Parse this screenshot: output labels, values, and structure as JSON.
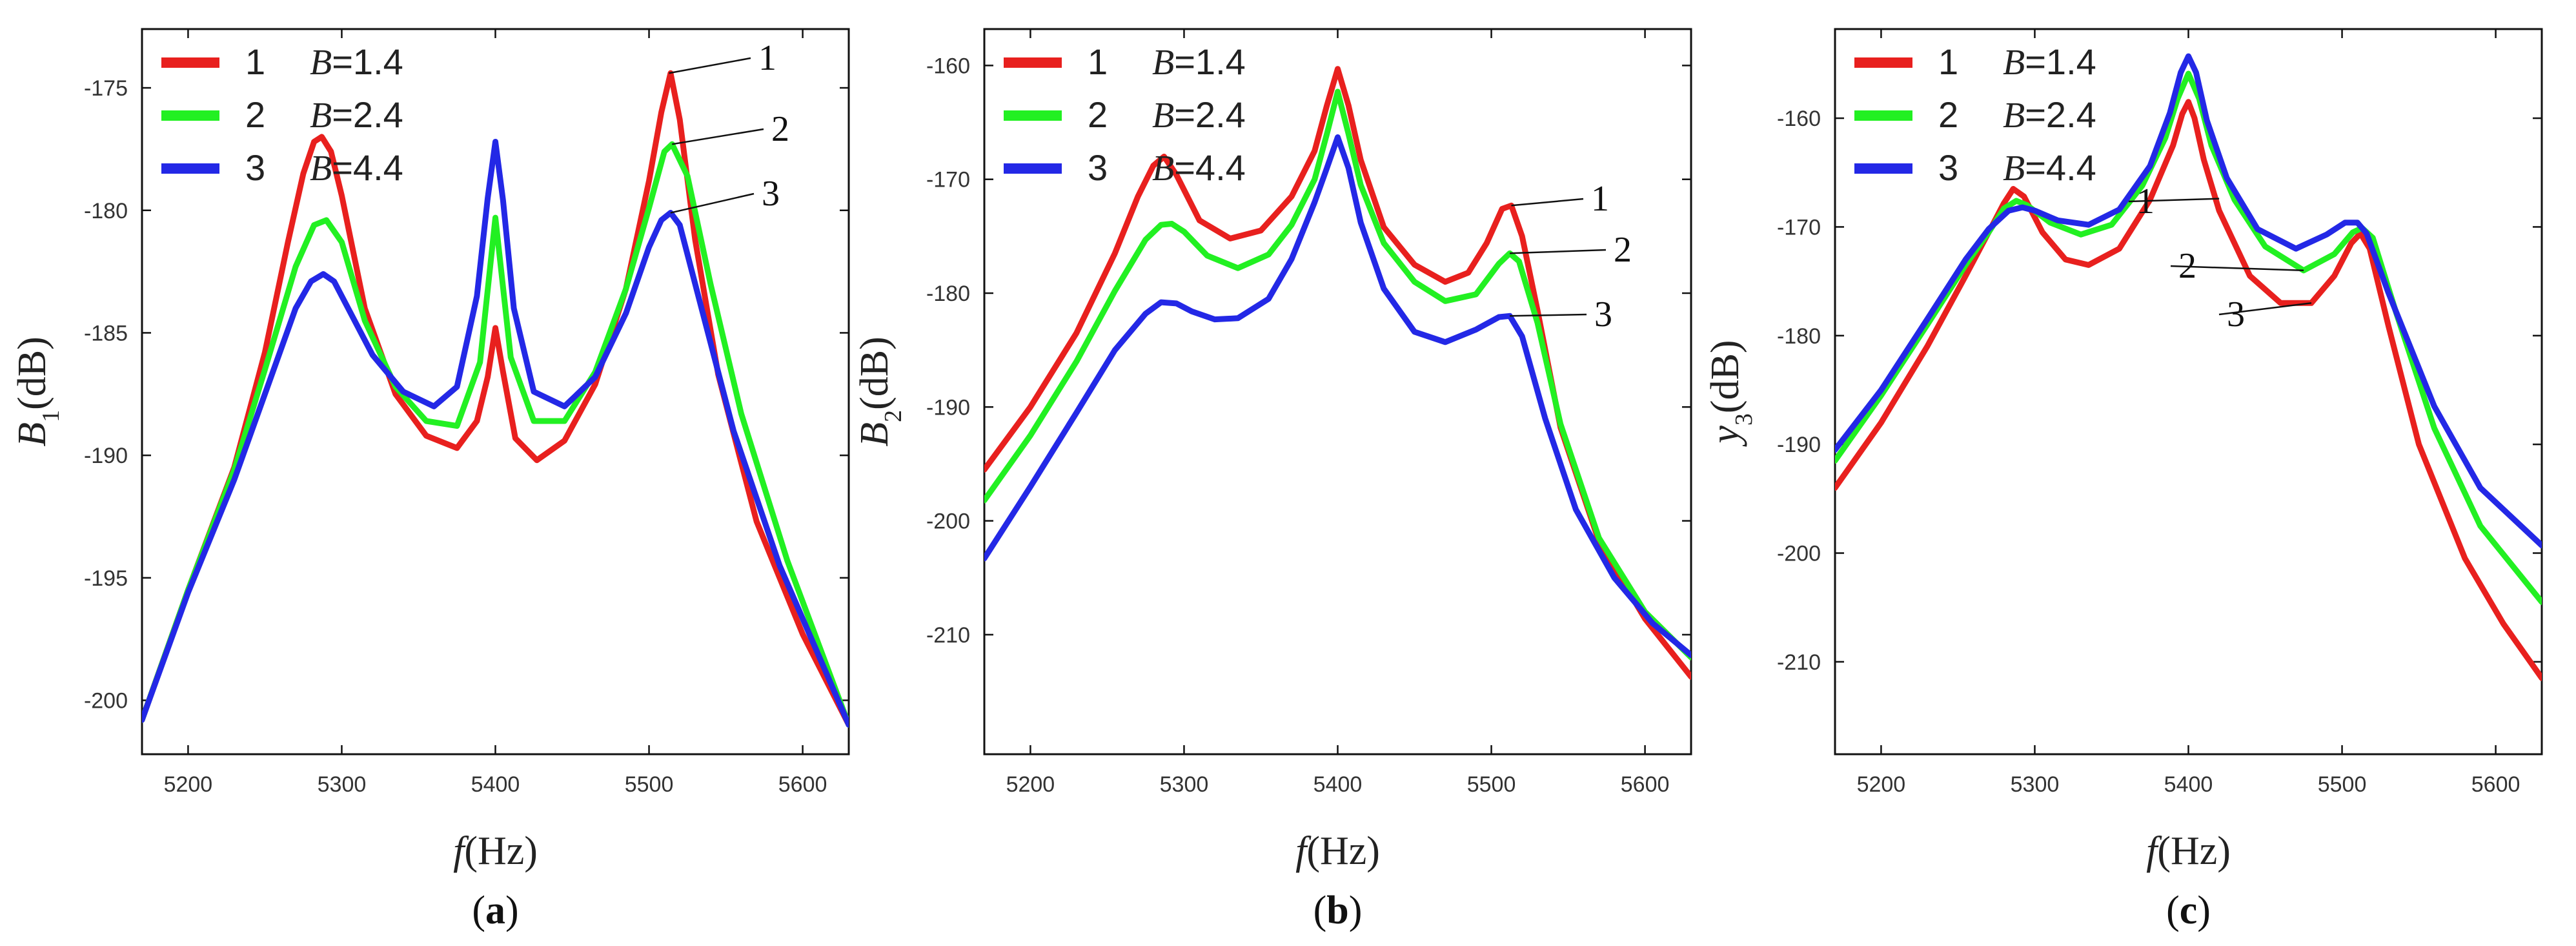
{
  "colors": {
    "series1": "#e8201e",
    "series2": "#22f022",
    "series3": "#2328e6"
  },
  "chart_data": [
    {
      "type": "line",
      "panel_label": "a",
      "xlabel": "f(Hz)",
      "ylabel": "B1(dB)",
      "xlim": [
        5170,
        5630
      ],
      "ylim": [
        -202.2,
        -172.6
      ],
      "xticks": [
        5200,
        5300,
        5400,
        5500,
        5600
      ],
      "yticks": [
        -175,
        -180,
        -185,
        -190,
        -195,
        -200
      ],
      "legend_position": "top-left",
      "series": [
        {
          "name": "1",
          "legend_value": "B=1.4",
          "x": [
            5170,
            5200,
            5230,
            5250,
            5265,
            5275,
            5282,
            5287,
            5293,
            5300,
            5315,
            5335,
            5355,
            5375,
            5388,
            5395,
            5400,
            5405,
            5413,
            5427,
            5445,
            5465,
            5485,
            5500,
            5508,
            5514,
            5520,
            5530,
            5545,
            5570,
            5600,
            5630
          ],
          "y": [
            -200.8,
            -195.5,
            -190.5,
            -185.8,
            -181.3,
            -178.5,
            -177.2,
            -177.0,
            -177.6,
            -179.4,
            -184,
            -187.5,
            -189.2,
            -189.7,
            -188.6,
            -186.8,
            -184.8,
            -186.6,
            -189.3,
            -190.2,
            -189.4,
            -187.1,
            -183.2,
            -178.8,
            -176.0,
            -174.4,
            -176.3,
            -181.2,
            -186.7,
            -192.7,
            -197.3,
            -201.0
          ]
        },
        {
          "name": "2",
          "legend_value": "B=2.4",
          "x": [
            5170,
            5200,
            5230,
            5250,
            5270,
            5282,
            5290,
            5300,
            5315,
            5335,
            5355,
            5375,
            5390,
            5400,
            5410,
            5425,
            5445,
            5465,
            5485,
            5500,
            5510,
            5515,
            5525,
            5540,
            5560,
            5590,
            5630
          ],
          "y": [
            -200.8,
            -195.5,
            -190.6,
            -186.5,
            -182.3,
            -180.6,
            -180.4,
            -181.3,
            -184.5,
            -187.2,
            -188.6,
            -188.8,
            -186.2,
            -180.3,
            -186.0,
            -188.6,
            -188.6,
            -186.6,
            -183.2,
            -179.9,
            -177.6,
            -177.3,
            -178.6,
            -183.0,
            -188.3,
            -194.3,
            -201.0
          ]
        },
        {
          "name": "3",
          "legend_value": "B=4.4",
          "x": [
            5170,
            5200,
            5230,
            5250,
            5270,
            5280,
            5288,
            5295,
            5305,
            5320,
            5340,
            5360,
            5375,
            5388,
            5395,
            5400,
            5405,
            5412,
            5425,
            5445,
            5465,
            5485,
            5500,
            5508,
            5514,
            5520,
            5535,
            5555,
            5585,
            5630
          ],
          "y": [
            -200.8,
            -195.6,
            -191.0,
            -187.5,
            -184.0,
            -182.9,
            -182.6,
            -182.9,
            -184.1,
            -185.9,
            -187.4,
            -188.0,
            -187.2,
            -183.5,
            -179.5,
            -177.2,
            -179.6,
            -184.0,
            -187.4,
            -188.0,
            -186.8,
            -184.2,
            -181.5,
            -180.4,
            -180.1,
            -180.6,
            -184.2,
            -189.0,
            -194.5,
            -201.0
          ]
        }
      ],
      "annotations": [
        "1",
        "2",
        "3"
      ]
    },
    {
      "type": "line",
      "panel_label": "b",
      "xlabel": "f(Hz)",
      "ylabel": "B2(dB)",
      "xlim": [
        5170,
        5630
      ],
      "ylim": [
        -220.5,
        -156.8
      ],
      "xticks": [
        5200,
        5300,
        5400,
        5500,
        5600
      ],
      "yticks": [
        -160,
        -170,
        -180,
        -190,
        -200,
        -210
      ],
      "legend_position": "top-left",
      "series": [
        {
          "name": "1",
          "legend_value": "B=1.4",
          "x": [
            5170,
            5200,
            5230,
            5255,
            5270,
            5280,
            5287,
            5295,
            5310,
            5330,
            5350,
            5370,
            5385,
            5393,
            5400,
            5407,
            5415,
            5430,
            5450,
            5470,
            5485,
            5497,
            5507,
            5513,
            5520,
            5530,
            5545,
            5570,
            5600,
            5630
          ],
          "y": [
            -195.5,
            -190,
            -183.5,
            -176.5,
            -171.5,
            -168.8,
            -168.0,
            -169.6,
            -173.6,
            -175.2,
            -174.5,
            -171.5,
            -167.5,
            -163.5,
            -160.3,
            -163.5,
            -168.3,
            -174.2,
            -177.5,
            -179.0,
            -178.2,
            -175.6,
            -172.6,
            -172.3,
            -175.0,
            -181.5,
            -191.8,
            -201.8,
            -208.6,
            -213.7
          ]
        },
        {
          "name": "2",
          "legend_value": "B=2.4",
          "x": [
            5170,
            5200,
            5230,
            5255,
            5275,
            5285,
            5292,
            5300,
            5315,
            5335,
            5355,
            5370,
            5385,
            5393,
            5400,
            5407,
            5415,
            5430,
            5450,
            5470,
            5490,
            5505,
            5512,
            5518,
            5530,
            5545,
            5570,
            5600,
            5630
          ],
          "y": [
            -198.2,
            -192.5,
            -186.0,
            -179.8,
            -175.3,
            -174.0,
            -173.9,
            -174.6,
            -176.7,
            -177.8,
            -176.6,
            -174.0,
            -170.0,
            -166.0,
            -162.3,
            -166.0,
            -170.5,
            -175.6,
            -179.0,
            -180.7,
            -180.1,
            -177.4,
            -176.5,
            -177.2,
            -182.6,
            -191.5,
            -201.5,
            -208.0,
            -212.0
          ]
        },
        {
          "name": "3",
          "legend_value": "B=4.4",
          "x": [
            5170,
            5200,
            5230,
            5255,
            5275,
            5285,
            5295,
            5305,
            5320,
            5335,
            5355,
            5370,
            5385,
            5393,
            5400,
            5407,
            5415,
            5430,
            5450,
            5470,
            5490,
            5505,
            5512,
            5520,
            5535,
            5555,
            5580,
            5605,
            5630
          ],
          "y": [
            -203.3,
            -197.0,
            -190.5,
            -185.0,
            -181.8,
            -180.8,
            -180.9,
            -181.6,
            -182.3,
            -182.2,
            -180.5,
            -177.0,
            -172.0,
            -169.0,
            -166.3,
            -169.0,
            -173.8,
            -179.6,
            -183.4,
            -184.3,
            -183.2,
            -182.1,
            -182.0,
            -183.8,
            -191.0,
            -199.0,
            -205.0,
            -209.0,
            -211.8
          ]
        }
      ],
      "annotations": [
        "1",
        "2",
        "3"
      ]
    },
    {
      "type": "line",
      "panel_label": "c",
      "xlabel": "f(Hz)",
      "ylabel": "y3(dB)",
      "xlim": [
        5170,
        5630
      ],
      "ylim": [
        -218.5,
        -151.8
      ],
      "xticks": [
        5200,
        5300,
        5400,
        5500,
        5600
      ],
      "yticks": [
        -160,
        -170,
        -180,
        -190,
        -200,
        -210
      ],
      "legend_position": "top-left",
      "series": [
        {
          "name": "1",
          "legend_value": "B=1.4",
          "x": [
            5170,
            5200,
            5230,
            5255,
            5270,
            5280,
            5286,
            5293,
            5305,
            5320,
            5335,
            5355,
            5375,
            5390,
            5396,
            5400,
            5404,
            5410,
            5420,
            5440,
            5460,
            5480,
            5495,
            5506,
            5512,
            5518,
            5530,
            5550,
            5580,
            5605,
            5630
          ],
          "y": [
            -194.0,
            -188.0,
            -181.0,
            -174.5,
            -170.5,
            -167.8,
            -166.5,
            -167.2,
            -170.5,
            -173.0,
            -173.5,
            -172.0,
            -167.5,
            -162.5,
            -159.6,
            -158.5,
            -160.0,
            -163.8,
            -168.5,
            -174.5,
            -177.0,
            -177.0,
            -174.5,
            -171.5,
            -170.6,
            -172.0,
            -179.0,
            -190.0,
            -200.5,
            -206.5,
            -211.5
          ]
        },
        {
          "name": "2",
          "legend_value": "B=2.4",
          "x": [
            5170,
            5200,
            5230,
            5255,
            5270,
            5280,
            5288,
            5295,
            5310,
            5330,
            5350,
            5370,
            5385,
            5393,
            5400,
            5407,
            5415,
            5430,
            5450,
            5475,
            5495,
            5507,
            5513,
            5520,
            5535,
            5560,
            5590,
            5630
          ],
          "y": [
            -191.5,
            -185.5,
            -179.0,
            -173.5,
            -170.5,
            -168.3,
            -167.6,
            -168.0,
            -169.6,
            -170.7,
            -169.8,
            -166.2,
            -161.8,
            -158.2,
            -155.9,
            -158.2,
            -162.5,
            -167.5,
            -171.8,
            -174.0,
            -172.5,
            -170.5,
            -170.1,
            -171.0,
            -177.8,
            -188.5,
            -197.5,
            -204.5
          ]
        },
        {
          "name": "3",
          "legend_value": "B=4.4",
          "x": [
            5170,
            5200,
            5230,
            5255,
            5270,
            5283,
            5292,
            5300,
            5315,
            5335,
            5355,
            5375,
            5388,
            5395,
            5400,
            5405,
            5412,
            5425,
            5445,
            5470,
            5490,
            5502,
            5510,
            5516,
            5530,
            5560,
            5590,
            5630
          ],
          "y": [
            -190.5,
            -185.0,
            -178.5,
            -173.0,
            -170.2,
            -168.5,
            -168.2,
            -168.5,
            -169.4,
            -169.8,
            -168.4,
            -164.4,
            -159.5,
            -155.8,
            -154.3,
            -155.8,
            -160.2,
            -165.5,
            -170.2,
            -172.0,
            -170.7,
            -169.6,
            -169.6,
            -170.6,
            -176.0,
            -186.5,
            -194.0,
            -199.3
          ]
        }
      ],
      "annotations": [
        "1",
        "2",
        "3"
      ]
    }
  ]
}
